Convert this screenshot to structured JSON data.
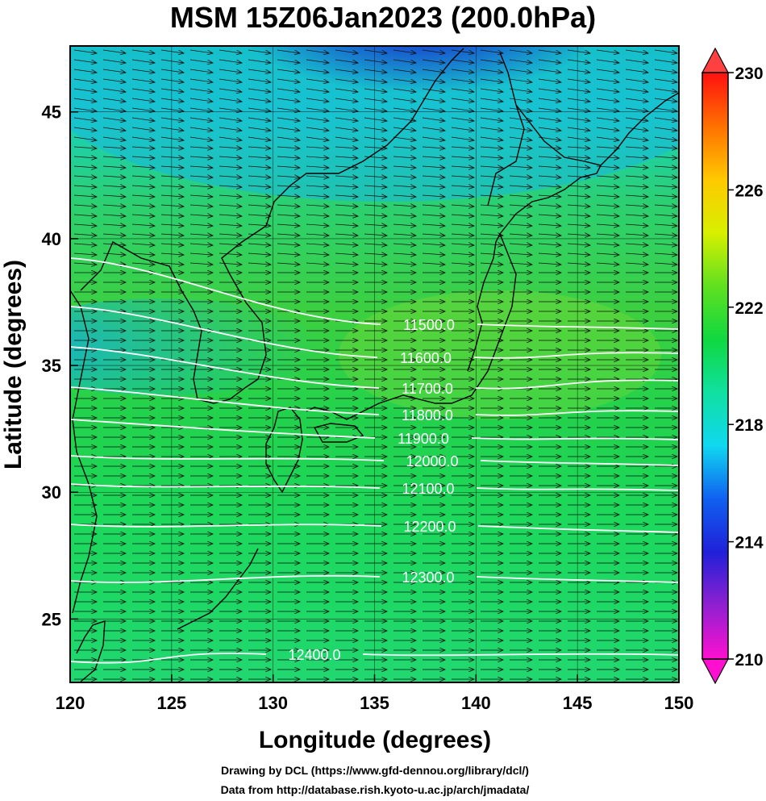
{
  "title": "MSM 15Z06Jan2023 (200.0hPa)",
  "map": {
    "lon_range": [
      120,
      150
    ],
    "lat_range": [
      22.5,
      47.6
    ],
    "xticks": [
      120,
      125,
      130,
      135,
      140,
      145,
      150
    ],
    "yticks": [
      25,
      30,
      35,
      40,
      45
    ],
    "xlabel": "Longitude (degrees)",
    "ylabel": "Latitude  (degrees)",
    "gridlines": true,
    "shaded_field": "temperature (K)",
    "vectors": "wind",
    "contour_labels": [
      "11500.0",
      "11600.0",
      "11700.0",
      "11800.0",
      "11900.0",
      "12000.0",
      "12100.0",
      "12200.0",
      "12300.0",
      "12400.0"
    ],
    "colors": {
      "cold_core": "#2030c8",
      "ambient": "#2ecc46",
      "contour": "#ffffff",
      "coastline": "#000000"
    }
  },
  "colorbar": {
    "min": 210,
    "max": 230,
    "tick_labels": [
      "230",
      "226",
      "222",
      "218",
      "214",
      "210"
    ],
    "stops": [
      "#ff10d0",
      "#9020d0",
      "#2020d8",
      "#1060f0",
      "#10d8f0",
      "#10e0a0",
      "#10d840",
      "#60e020",
      "#d8f000",
      "#ffc800",
      "#ff7000",
      "#ff1010"
    ]
  },
  "footer": {
    "line1": "Drawing by DCL (https://www.gfd-dennou.org/library/dcl/)",
    "line2": "Data from http://database.rish.kyoto-u.ac.jp/arch/jmadata/"
  }
}
